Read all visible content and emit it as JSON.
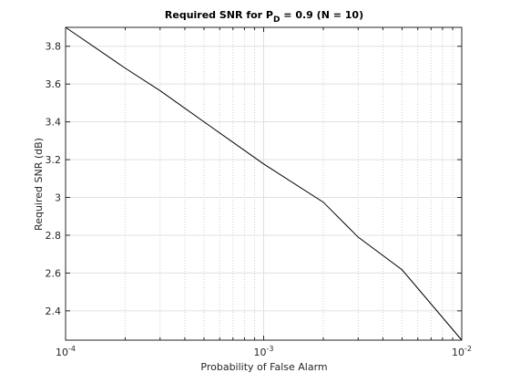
{
  "chart_data": {
    "type": "line",
    "title": [
      "Required SNR for P",
      "D",
      " = 0.9 (N = 10)"
    ],
    "x_label": "Probability of False Alarm",
    "y_label": "Required SNR (dB)",
    "x_scale": "log",
    "x": [
      0.0001,
      0.0002,
      0.0003,
      0.0005,
      0.001,
      0.002,
      0.003,
      0.005,
      0.01
    ],
    "values": [
      3.9,
      3.684,
      3.565,
      3.4,
      3.177,
      2.975,
      2.79,
      2.617,
      2.245
    ],
    "color": "#000000",
    "xlim": [
      0.0001,
      0.01
    ],
    "ylim": [
      2.245,
      3.9
    ],
    "xticks": [
      {
        "value": 0.0001,
        "label": "10",
        "exponent": "-4"
      },
      {
        "value": 0.001,
        "label": "10",
        "exponent": "-3"
      },
      {
        "value": 0.01,
        "label": "10",
        "exponent": "-2"
      }
    ],
    "xminorticks": [
      0.0002,
      0.0003,
      0.0004,
      0.0005,
      0.0006,
      0.0007,
      0.0008,
      0.0009,
      0.002,
      0.003,
      0.004,
      0.005,
      0.006,
      0.007,
      0.008,
      0.009
    ],
    "yticks": [
      2.4,
      2.6,
      2.8,
      3,
      3.2,
      3.4,
      3.6,
      3.8
    ],
    "grid": true
  }
}
